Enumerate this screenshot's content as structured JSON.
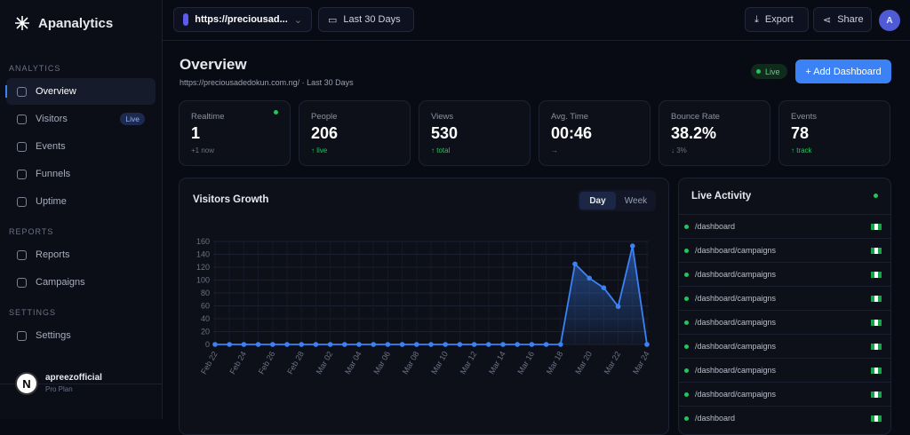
{
  "sidebar": {
    "brand": "Apanalytics",
    "sections": [
      {
        "title": "ANALYTICS",
        "items": [
          {
            "label": "Overview"
          },
          {
            "label": "Visitors",
            "badge": "Live"
          },
          {
            "label": "Events"
          },
          {
            "label": "Funnels"
          },
          {
            "label": "Uptime"
          }
        ]
      },
      {
        "title": "REPORTS",
        "items": [
          {
            "label": "Reports"
          },
          {
            "label": "Campaigns"
          }
        ]
      },
      {
        "title": "SETTINGS",
        "items": [
          {
            "label": "Settings"
          }
        ]
      }
    ],
    "user": {
      "avatar": "N",
      "name": "apreezofficial",
      "plan": "Pro Plan"
    }
  },
  "topbar": {
    "site": "https://preciousad...",
    "range": "Last 30 Days",
    "export": "Export",
    "share": "Share",
    "avatar": "A"
  },
  "header": {
    "title": "Overview",
    "subtitle": "https://preciousadedokun.com.ng/ · Last 30 Days",
    "live": "Live",
    "button": "+ Add Dashboard"
  },
  "stats": [
    {
      "label": "Realtime",
      "value": "1",
      "sub": "+1 now"
    },
    {
      "label": "People",
      "value": "206",
      "sub": "↑ live"
    },
    {
      "label": "Views",
      "value": "530",
      "sub": "↑ total"
    },
    {
      "label": "Avg. Time",
      "value": "00:46",
      "sub": "→"
    },
    {
      "label": "Bounce Rate",
      "value": "38.2%",
      "sub": "↓ 3%"
    },
    {
      "label": "Events",
      "value": "78",
      "sub": "↑ track"
    }
  ],
  "chart_panel": {
    "tabs": [
      "Day",
      "Week"
    ]
  },
  "chart_data": {
    "type": "line",
    "title": "Visitors Growth",
    "color": "#3b82f6",
    "grid": true,
    "categories": [
      "Feb 22",
      null,
      "Feb 24",
      null,
      "Feb 26",
      null,
      "Feb 28",
      null,
      "Mar 02",
      null,
      "Mar 04",
      null,
      "Mar 06",
      null,
      "Mar 08",
      null,
      "Mar 10",
      null,
      "Mar 12",
      null,
      "Mar 14",
      null,
      "Mar 16",
      null,
      "Mar 18",
      null,
      "Mar 20",
      null,
      "Mar 22",
      null,
      "Mar 24"
    ],
    "values": [
      0,
      0,
      0,
      0,
      0,
      0,
      0,
      0,
      0,
      0,
      0,
      0,
      0,
      0,
      0,
      0,
      0,
      0,
      0,
      0,
      0,
      0,
      0,
      0,
      0,
      125,
      103,
      88,
      59,
      153,
      0
    ],
    "ylim": [
      0,
      160
    ],
    "yticks": [
      0,
      20,
      40,
      60,
      80,
      100,
      120,
      140,
      160
    ]
  },
  "live_activity": {
    "title": "Live Activity",
    "items": [
      "/dashboard",
      "/dashboard/campaigns",
      "/dashboard/campaigns",
      "/dashboard/campaigns",
      "/dashboard/campaigns",
      "/dashboard/campaigns",
      "/dashboard/campaigns",
      "/dashboard/campaigns",
      "/dashboard"
    ]
  }
}
